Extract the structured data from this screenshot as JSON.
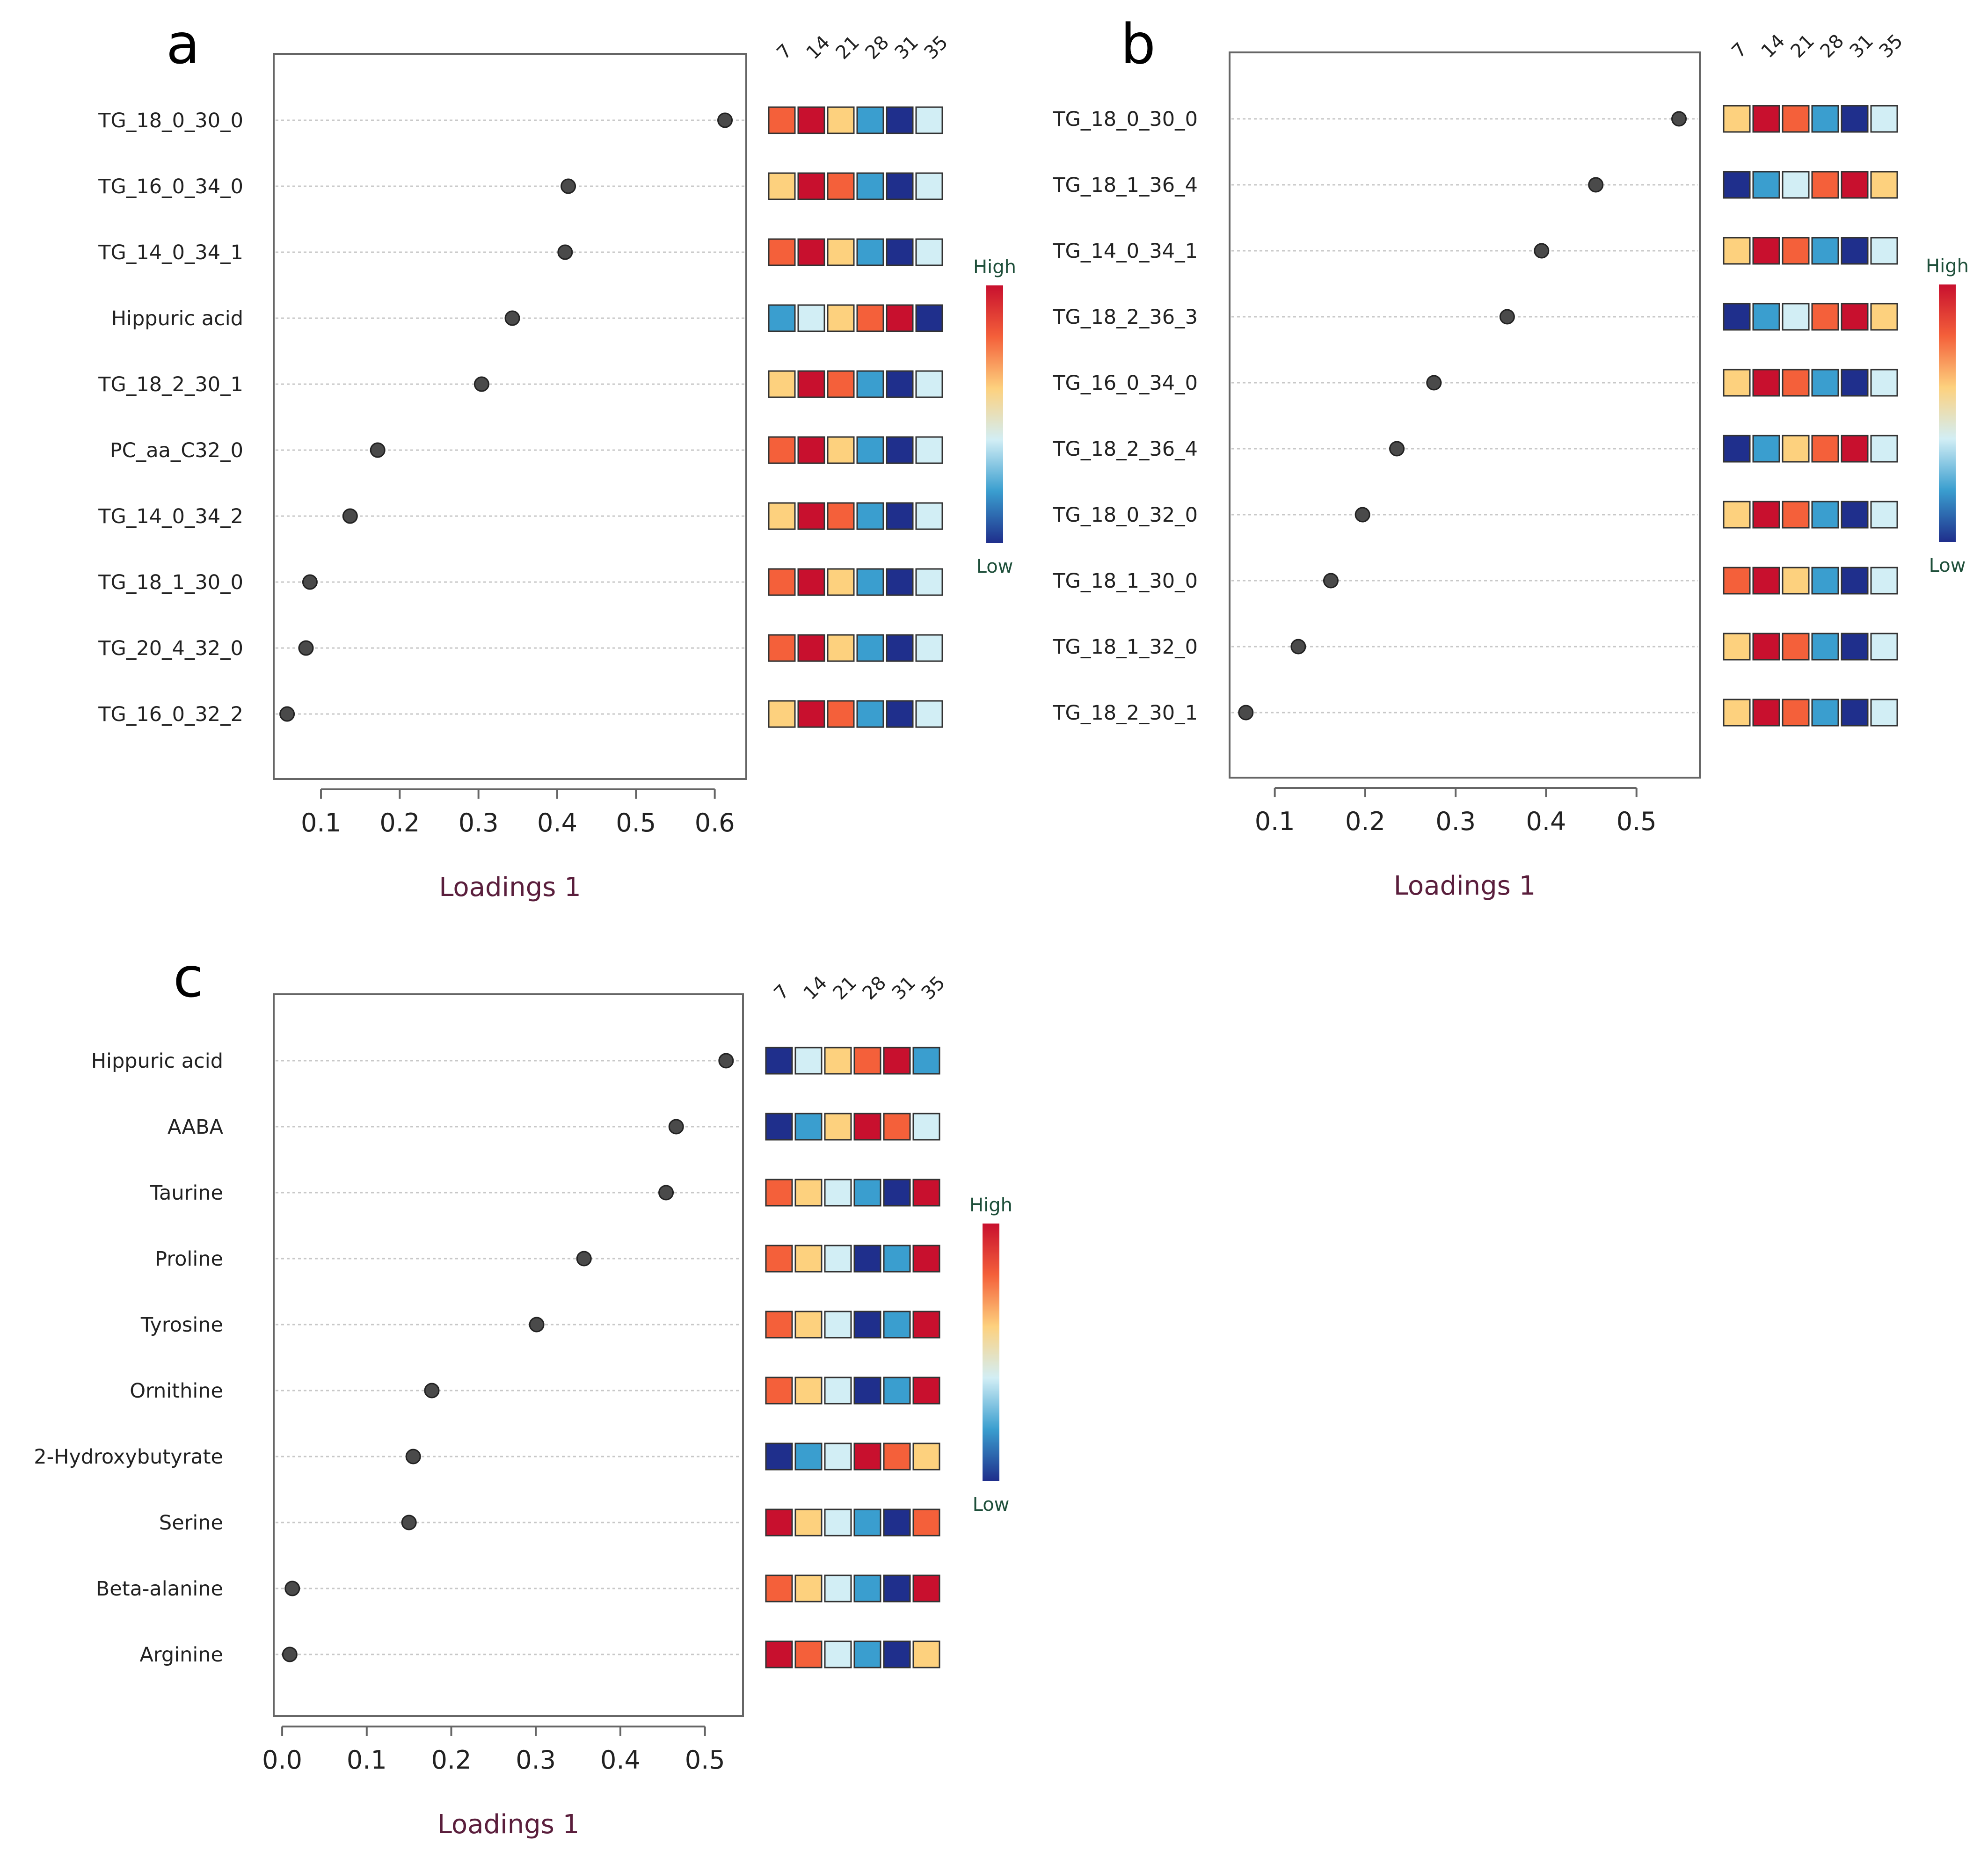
{
  "panels": [
    {
      "letter": "a",
      "xlabel": "Loadings 1",
      "xlim": [
        0.04,
        0.64
      ],
      "xticks": [
        0.1,
        0.2,
        0.3,
        0.4,
        0.5,
        0.6
      ],
      "tick_labels": [
        "0.1",
        "0.2",
        "0.3",
        "0.4",
        "0.5",
        "0.6"
      ],
      "heat_columns": [
        "7",
        "14",
        "21",
        "28",
        "31",
        "35"
      ],
      "legend": {
        "high": "High",
        "low": "Low"
      },
      "features": [
        "TG_18_0_30_0",
        "TG_16_0_34_0",
        "TG_14_0_34_1",
        "Hippuric_acid",
        "TG_18_2_30_1",
        "PC_aa_C32_0",
        "TG_14_0_34_2",
        "TG_18_1_30_0",
        "TG_20_4_32_0",
        "TG_16_0_32_2"
      ],
      "feature_labels": [
        "TG_18_0_30_0",
        "TG_16_0_34_0",
        "TG_14_0_34_1",
        "Hippuric  acid",
        "TG_18_2_30_1",
        "PC_aa_C32_0",
        "TG_14_0_34_2",
        "TG_18_1_30_0",
        "TG_20_4_32_0",
        "TG_16_0_32_2"
      ],
      "loadings": [
        0.613,
        0.414,
        0.41,
        0.343,
        0.304,
        0.172,
        0.137,
        0.086,
        0.081,
        0.057
      ],
      "heatmap": [
        [
          4,
          5,
          3,
          1,
          0,
          2
        ],
        [
          3,
          5,
          4,
          1,
          0,
          2
        ],
        [
          4,
          5,
          3,
          1,
          0,
          2
        ],
        [
          1,
          2,
          3,
          4,
          5,
          0
        ],
        [
          3,
          5,
          4,
          1,
          0,
          2
        ],
        [
          4,
          5,
          3,
          1,
          0,
          2
        ],
        [
          3,
          5,
          4,
          1,
          0,
          2
        ],
        [
          4,
          5,
          3,
          1,
          0,
          2
        ],
        [
          4,
          5,
          3,
          1,
          0,
          2
        ],
        [
          3,
          5,
          4,
          1,
          0,
          2
        ]
      ]
    },
    {
      "letter": "b",
      "xlabel": "Loadings 1",
      "xlim": [
        0.05,
        0.57
      ],
      "xticks": [
        0.1,
        0.2,
        0.3,
        0.4,
        0.5
      ],
      "tick_labels": [
        "0.1",
        "0.2",
        "0.3",
        "0.4",
        "0.5"
      ],
      "heat_columns": [
        "7",
        "14",
        "21",
        "28",
        "31",
        "35"
      ],
      "legend": {
        "high": "High",
        "low": "Low"
      },
      "features": [
        "TG_18_0_30_0",
        "TG_18_1_36_4",
        "TG_14_0_34_1",
        "TG_18_2_36_3",
        "TG_16_0_34_0",
        "TG_18_2_36_4",
        "TG_18_0_32_0",
        "TG_18_1_30_0",
        "TG_18_1_32_0",
        "TG_18_2_30_1"
      ],
      "feature_labels": [
        "TG_18_0_30_0",
        "TG_18_1_36_4",
        "TG_14_0_34_1",
        "TG_18_2_36_3",
        "TG_16_0_34_0",
        "TG_18_2_36_4",
        "TG_18_0_32_0",
        "TG_18_1_30_0",
        "TG_18_1_32_0",
        "TG_18_2_30_1"
      ],
      "loadings": [
        0.547,
        0.455,
        0.395,
        0.357,
        0.276,
        0.235,
        0.197,
        0.162,
        0.126,
        0.068
      ],
      "heatmap": [
        [
          3,
          5,
          4,
          1,
          0,
          2
        ],
        [
          0,
          1,
          2,
          4,
          5,
          3
        ],
        [
          3,
          5,
          4,
          1,
          0,
          2
        ],
        [
          0,
          1,
          2,
          4,
          5,
          3
        ],
        [
          3,
          5,
          4,
          1,
          0,
          2
        ],
        [
          0,
          1,
          3,
          4,
          5,
          2
        ],
        [
          3,
          5,
          4,
          1,
          0,
          2
        ],
        [
          4,
          5,
          3,
          1,
          0,
          2
        ],
        [
          3,
          5,
          4,
          1,
          0,
          2
        ],
        [
          3,
          5,
          4,
          1,
          0,
          2
        ]
      ]
    },
    {
      "letter": "c",
      "xlabel": "Loadings 1",
      "xlim": [
        -0.01,
        0.545
      ],
      "xticks": [
        0.0,
        0.1,
        0.2,
        0.3,
        0.4,
        0.5
      ],
      "tick_labels": [
        "0.0",
        "0.1",
        "0.2",
        "0.3",
        "0.4",
        "0.5"
      ],
      "heat_columns": [
        "7",
        "14",
        "21",
        "28",
        "31",
        "35"
      ],
      "legend": {
        "high": "High",
        "low": "Low"
      },
      "features": [
        "Hippuric_acid",
        "AABA",
        "Taurine",
        "Proline",
        "Tyrosine",
        "Ornithine",
        "2-Hydroxybutyrate",
        "Serine",
        "Beta-alanine",
        "Arginine"
      ],
      "feature_labels": [
        "Hippuric  acid",
        "AABA",
        "Taurine",
        "Proline",
        "Tyrosine",
        "Ornithine",
        "2-Hydroxybutyrate",
        "Serine",
        "Beta-alanine",
        "Arginine"
      ],
      "loadings": [
        0.525,
        0.466,
        0.454,
        0.357,
        0.301,
        0.177,
        0.155,
        0.15,
        0.012,
        0.009
      ],
      "heatmap": [
        [
          0,
          2,
          3,
          4,
          5,
          1
        ],
        [
          0,
          1,
          3,
          5,
          4,
          2
        ],
        [
          4,
          3,
          2,
          1,
          0,
          5
        ],
        [
          4,
          3,
          2,
          0,
          1,
          5
        ],
        [
          4,
          3,
          2,
          0,
          1,
          5
        ],
        [
          4,
          3,
          2,
          0,
          1,
          5
        ],
        [
          0,
          1,
          2,
          5,
          4,
          3
        ],
        [
          5,
          3,
          2,
          1,
          0,
          4
        ],
        [
          4,
          3,
          2,
          1,
          0,
          5
        ],
        [
          5,
          4,
          2,
          1,
          0,
          3
        ]
      ]
    }
  ],
  "colors": {
    "dot": "#4a4a4a",
    "dot_stroke": "#222222",
    "axis": "#666666",
    "grid": "#c8c8c8",
    "label_dark": "#222222",
    "xlabel": "#5a1e3c",
    "legend_text": "#1e4f3a",
    "scale": [
      "#1f2f8c",
      "#3a9ecf",
      "#d2eef5",
      "#fdd17e",
      "#f4603a",
      "#c8102e"
    ]
  },
  "chart_data": [
    {
      "type": "scatter",
      "title": "a",
      "xlabel": "Loadings 1",
      "ylabel": "",
      "xlim": [
        0.04,
        0.64
      ],
      "categories": [
        "TG_18_0_30_0",
        "TG_16_0_34_0",
        "TG_14_0_34_1",
        "Hippuric  acid",
        "TG_18_2_30_1",
        "PC_aa_C32_0",
        "TG_14_0_34_2",
        "TG_18_1_30_0",
        "TG_20_4_32_0",
        "TG_16_0_32_2"
      ],
      "values": [
        0.613,
        0.414,
        0.41,
        0.343,
        0.304,
        0.172,
        0.137,
        0.086,
        0.081,
        0.057
      ],
      "heatmap_columns": [
        "7",
        "14",
        "21",
        "28",
        "31",
        "35"
      ],
      "heatmap_levels": "0=Low ... 5=High"
    },
    {
      "type": "scatter",
      "title": "b",
      "xlabel": "Loadings 1",
      "ylabel": "",
      "xlim": [
        0.05,
        0.57
      ],
      "categories": [
        "TG_18_0_30_0",
        "TG_18_1_36_4",
        "TG_14_0_34_1",
        "TG_18_2_36_3",
        "TG_16_0_34_0",
        "TG_18_2_36_4",
        "TG_18_0_32_0",
        "TG_18_1_30_0",
        "TG_18_1_32_0",
        "TG_18_2_30_1"
      ],
      "values": [
        0.547,
        0.455,
        0.395,
        0.357,
        0.276,
        0.235,
        0.197,
        0.162,
        0.126,
        0.068
      ],
      "heatmap_columns": [
        "7",
        "14",
        "21",
        "28",
        "31",
        "35"
      ],
      "heatmap_levels": "0=Low ... 5=High"
    },
    {
      "type": "scatter",
      "title": "c",
      "xlabel": "Loadings 1",
      "ylabel": "",
      "xlim": [
        -0.01,
        0.545
      ],
      "categories": [
        "Hippuric  acid",
        "AABA",
        "Taurine",
        "Proline",
        "Tyrosine",
        "Ornithine",
        "2-Hydroxybutyrate",
        "Serine",
        "Beta-alanine",
        "Arginine"
      ],
      "values": [
        0.525,
        0.466,
        0.454,
        0.357,
        0.301,
        0.177,
        0.155,
        0.15,
        0.012,
        0.009
      ],
      "heatmap_columns": [
        "7",
        "14",
        "21",
        "28",
        "31",
        "35"
      ],
      "heatmap_levels": "0=Low ... 5=High"
    }
  ]
}
